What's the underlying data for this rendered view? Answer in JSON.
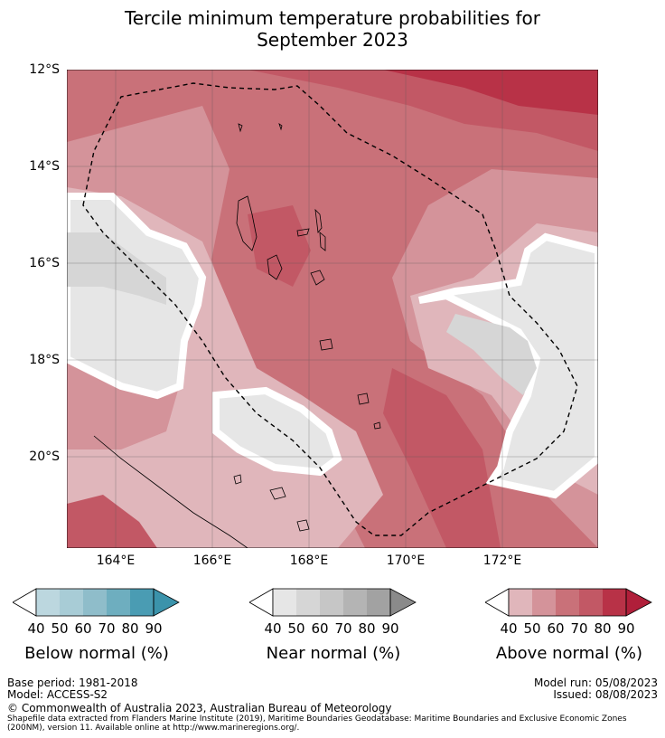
{
  "title_line1": "Tercile minimum temperature probabilities for",
  "title_line2": "September 2023",
  "map": {
    "lat_labels": [
      "12°S",
      "14°S",
      "16°S",
      "18°S",
      "20°S"
    ],
    "lon_labels": [
      "164°E",
      "166°E",
      "168°E",
      "170°E",
      "172°E"
    ],
    "extent": {
      "lon_min": 163,
      "lon_max": 173.9,
      "lat_min": -21.9,
      "lat_max": -12
    }
  },
  "colorbars": [
    {
      "name": "below-normal",
      "ticks": [
        "40",
        "50",
        "60",
        "70",
        "80",
        "90"
      ],
      "title": "Below normal (%)",
      "colors": [
        "#ffffff",
        "#bcd7df",
        "#a8ccd6",
        "#8fbdca",
        "#6eaebf",
        "#4a9cb3",
        "#3b93ab"
      ]
    },
    {
      "name": "near-normal",
      "ticks": [
        "40",
        "50",
        "60",
        "70",
        "80",
        "90"
      ],
      "title": "Near normal (%)",
      "colors": [
        "#ffffff",
        "#e6e6e6",
        "#d6d6d6",
        "#c6c6c6",
        "#b4b4b4",
        "#a2a2a2",
        "#8a8a8a"
      ]
    },
    {
      "name": "above-normal",
      "ticks": [
        "40",
        "50",
        "60",
        "70",
        "80",
        "90"
      ],
      "title": "Above normal (%)",
      "colors": [
        "#ffffff",
        "#e0b6bb",
        "#d4939a",
        "#c97179",
        "#c25865",
        "#b83247",
        "#b01f3a"
      ]
    }
  ],
  "footer": {
    "base_period": "Base period: 1981-2018",
    "model": "Model: ACCESS-S2",
    "model_run": "Model run: 05/08/2023",
    "issued": "Issued: 08/08/2023",
    "copyright": "© Commonwealth of Australia 2023, Australian Bureau of Meteorology",
    "shapefile_line1": "Shapefile data extracted from Flanders Marine Institute (2019), Maritime Boundaries Geodatabase: Maritime Boundaries and Exclusive Economic Zones",
    "shapefile_line2": "(200NM), version 11. Available online at http://www.marineregions.org/."
  }
}
